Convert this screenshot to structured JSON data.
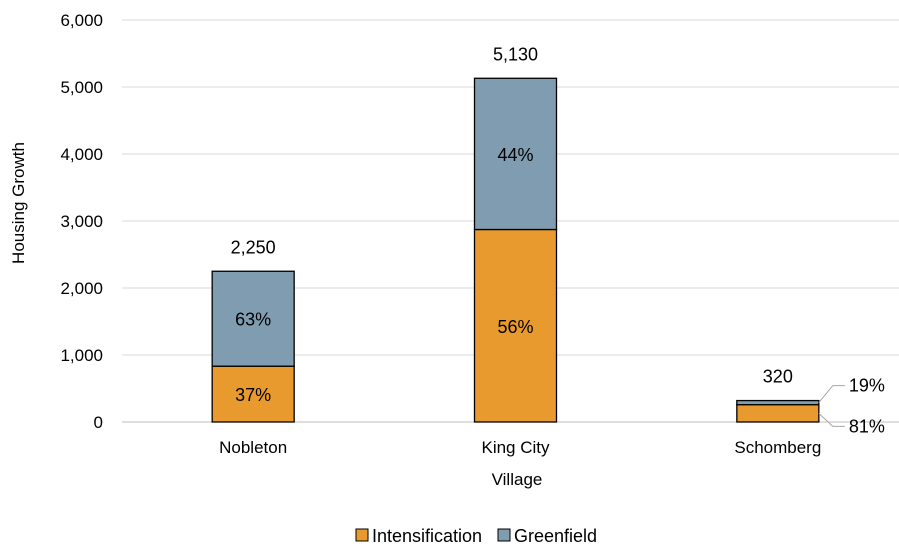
{
  "chart_data": {
    "type": "bar",
    "stacked": true,
    "categories": [
      "Nobleton",
      "King City",
      "Schomberg"
    ],
    "series": [
      {
        "name": "Intensification",
        "color": "#E89A2E",
        "values": [
          833,
          2873,
          259
        ],
        "labels": [
          "37%",
          "56%",
          "81%"
        ]
      },
      {
        "name": "Greenfield",
        "color": "#7F9CB0",
        "values": [
          1417,
          2257,
          61
        ],
        "labels": [
          "63%",
          "44%",
          "19%"
        ]
      }
    ],
    "totals": [
      2250,
      5130,
      320
    ],
    "total_labels": [
      "2,250",
      "5,130",
      "320"
    ],
    "ylim": [
      0,
      6000
    ],
    "yticks": [
      0,
      1000,
      2000,
      3000,
      4000,
      5000,
      6000
    ],
    "ytick_labels": [
      "0",
      "1,000",
      "2,000",
      "3,000",
      "4,000",
      "5,000",
      "6,000"
    ],
    "xlabel": "Village",
    "ylabel": "Housing Growth",
    "grid": "horizontal",
    "legend": "bottom",
    "gridline_color": "#D9D9D9",
    "bar_outline_color": "#000000"
  }
}
